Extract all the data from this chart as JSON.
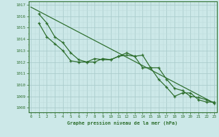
{
  "title": "Graphe pression niveau de la mer (hPa)",
  "bg_color": "#cce8e8",
  "grid_color_major": "#aacccc",
  "grid_color_minor": "#bedddd",
  "line_color": "#2d6e2d",
  "xlim": [
    -0.3,
    23.3
  ],
  "ylim": [
    1007.6,
    1017.3
  ],
  "yticks": [
    1008,
    1009,
    1010,
    1011,
    1012,
    1013,
    1014,
    1015,
    1016,
    1017
  ],
  "xticks": [
    0,
    1,
    2,
    3,
    4,
    5,
    6,
    7,
    8,
    9,
    10,
    11,
    12,
    13,
    14,
    15,
    16,
    17,
    18,
    19,
    20,
    21,
    22,
    23
  ],
  "line1_straight": {
    "x": [
      0,
      23
    ],
    "y": [
      1016.8,
      1008.4
    ]
  },
  "line2": {
    "x": [
      1,
      2,
      3,
      4,
      5,
      6,
      7,
      8,
      9,
      10,
      11,
      12,
      13,
      14,
      15,
      16,
      17,
      18,
      19,
      20,
      21,
      22,
      23
    ],
    "y": [
      1016.2,
      1015.4,
      1014.2,
      1013.7,
      1012.8,
      1012.2,
      1012.0,
      1012.0,
      1012.3,
      1012.2,
      1012.5,
      1012.8,
      1012.5,
      1011.5,
      1011.5,
      1010.5,
      1009.8,
      1009.0,
      1009.3,
      1009.3,
      1008.7,
      1008.5,
      1008.5
    ]
  },
  "line3": {
    "x": [
      1,
      2,
      3,
      4,
      5,
      6,
      7,
      8,
      9,
      10,
      11,
      12,
      13,
      14,
      15,
      16,
      17,
      18,
      19,
      20,
      21,
      22,
      23
    ],
    "y": [
      1015.4,
      1014.2,
      1013.6,
      1013.0,
      1012.1,
      1012.0,
      1012.0,
      1012.3,
      1012.2,
      1012.2,
      1012.5,
      1012.6,
      1012.5,
      1012.6,
      1011.5,
      1011.5,
      1010.5,
      1009.7,
      1009.5,
      1009.0,
      1008.9,
      1008.7,
      1008.4
    ]
  }
}
